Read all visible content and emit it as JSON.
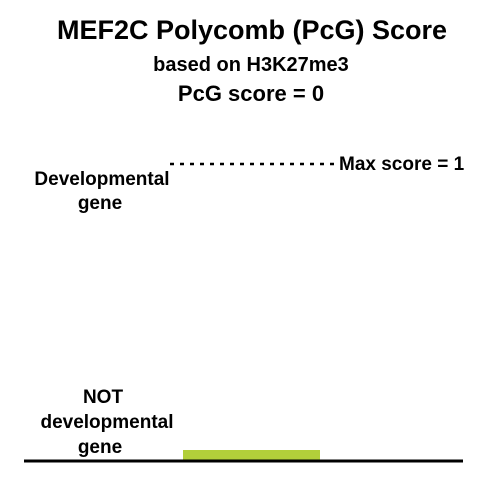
{
  "chart_data": {
    "type": "bar",
    "title": "MEF2C Polycomb (PcG) Score",
    "subtitle": "based on H3K27me3",
    "score_text": "PcG score = 0",
    "categories": [
      "MEF2C"
    ],
    "values": [
      0
    ],
    "ylim": [
      0,
      1
    ],
    "max_line": {
      "value": 1,
      "label": "Max score = 1"
    },
    "axis_labels": {
      "top": [
        "Developmental",
        "gene"
      ],
      "bottom": [
        "NOT",
        "developmental",
        "gene"
      ]
    },
    "colors": {
      "bar": "#b2cf3a",
      "axis": "#000000",
      "text": "#000000"
    }
  }
}
